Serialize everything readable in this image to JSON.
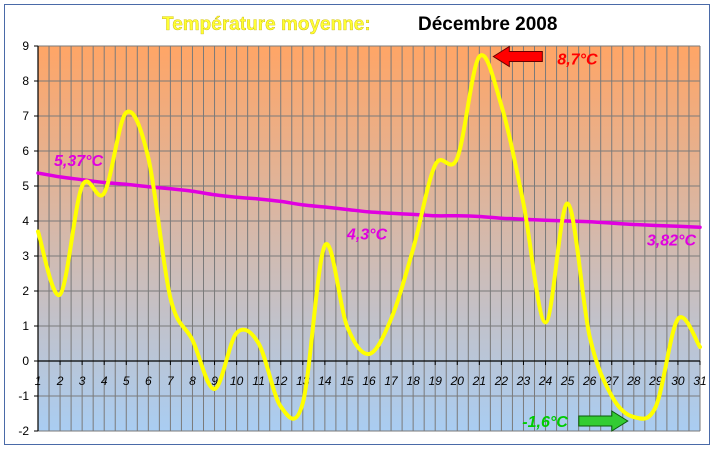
{
  "chart_data": {
    "type": "line",
    "title": "Température moyenne:",
    "subtitle": "Décembre 2008",
    "x": [
      1,
      2,
      3,
      4,
      5,
      6,
      7,
      8,
      9,
      10,
      11,
      12,
      13,
      14,
      15,
      16,
      17,
      18,
      19,
      20,
      21,
      22,
      23,
      24,
      25,
      26,
      27,
      28,
      29,
      30,
      31
    ],
    "ylim": [
      -2,
      9
    ],
    "yticks": [
      -2,
      -1,
      0,
      1,
      2,
      3,
      4,
      5,
      6,
      7,
      8,
      9
    ],
    "grid": true,
    "background": {
      "top": "#ffa566",
      "bottom": "#a9cdf2"
    },
    "series": [
      {
        "color": "#ffff00",
        "values": [
          3.7,
          1.9,
          5.0,
          4.8,
          7.1,
          5.8,
          1.8,
          0.6,
          -0.8,
          0.8,
          0.5,
          -1.3,
          -1.2,
          3.3,
          1.0,
          0.2,
          1.2,
          3.2,
          5.6,
          5.8,
          8.7,
          7.3,
          4.5,
          1.1,
          4.5,
          0.7,
          -1.0,
          -1.6,
          -1.3,
          1.2,
          0.4
        ]
      },
      {
        "color": "#e000e0",
        "values": [
          5.37,
          5.26,
          5.18,
          5.1,
          5.05,
          4.98,
          4.92,
          4.85,
          4.75,
          4.68,
          4.63,
          4.56,
          4.46,
          4.4,
          4.33,
          4.26,
          4.22,
          4.19,
          4.15,
          4.15,
          4.13,
          4.08,
          4.05,
          4.02,
          4.0,
          3.98,
          3.94,
          3.9,
          3.87,
          3.85,
          3.82
        ]
      }
    ],
    "annotations": [
      {
        "text": "8,7°C",
        "color": "#ff0000"
      },
      {
        "text": "-1,6°C",
        "color": "#00cc00"
      },
      {
        "text": "5,37°C",
        "color": "#e000e0"
      },
      {
        "text": "4,3°C",
        "color": "#e000e0"
      },
      {
        "text": "3,82°C",
        "color": "#e000e0"
      }
    ]
  }
}
